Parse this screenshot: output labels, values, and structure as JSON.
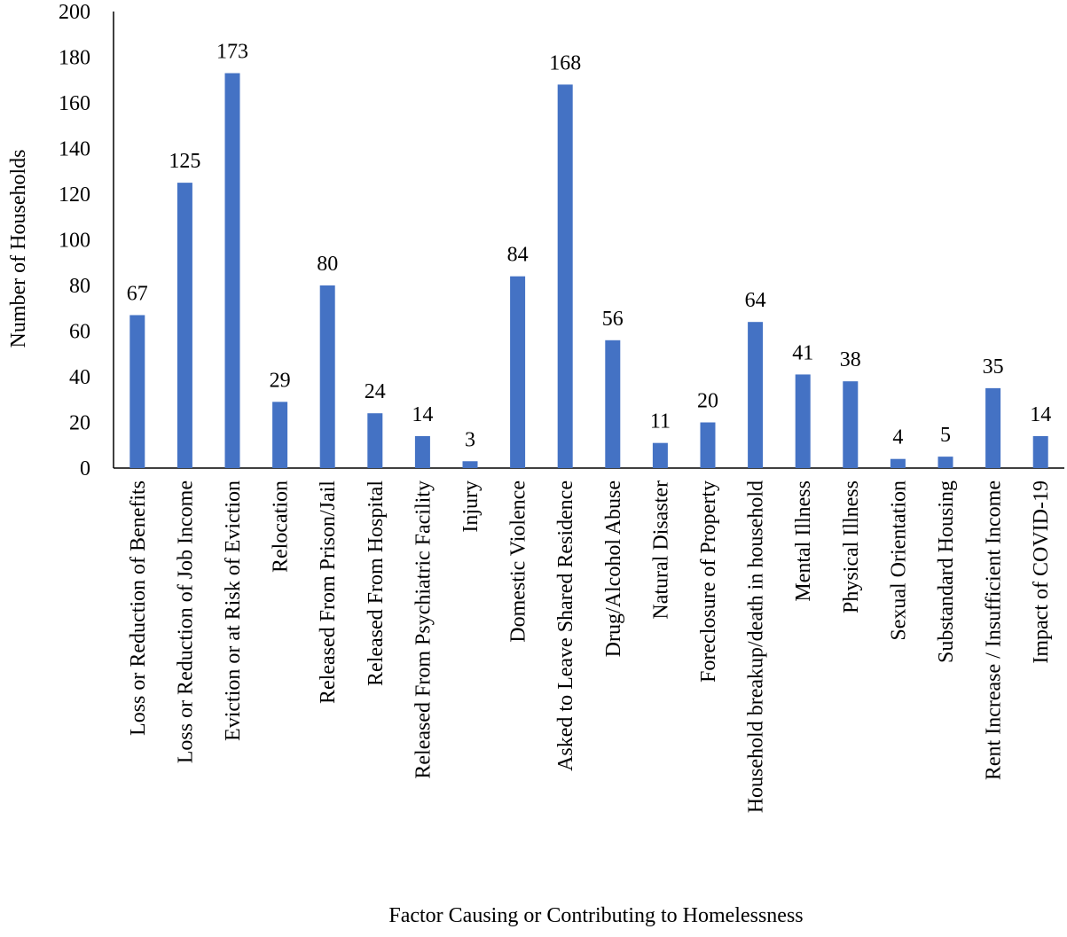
{
  "chart_data": {
    "type": "bar",
    "title": "",
    "xlabel": "Factor Causing or Contributing to Homelessness",
    "ylabel": "Number of Households",
    "ylim": [
      0,
      200
    ],
    "yticks": [
      0,
      20,
      40,
      60,
      80,
      100,
      120,
      140,
      160,
      180,
      200
    ],
    "grid": false,
    "legend": "none",
    "bar_color": "#4472C4",
    "categories": [
      "Loss or Reduction of Benefits",
      "Loss or Reduction of Job Income",
      "Eviction or at Risk of Eviction",
      "Relocation",
      "Released From Prison/Jail",
      "Released From Hospital",
      "Released From Psychiatric Facility",
      "Injury",
      "Domestic Violence",
      "Asked to Leave Shared Residence",
      "Drug/Alcohol Abuse",
      "Natural Disaster",
      "Foreclosure of Property",
      "Household breakup/death in household",
      "Mental Illness",
      "Physical Illness",
      "Sexual Orientation",
      "Substandard Housing",
      "Rent Increase / Insufficient Income",
      "Impact of COVID-19"
    ],
    "values": [
      67,
      125,
      173,
      29,
      80,
      24,
      14,
      3,
      84,
      168,
      56,
      11,
      20,
      64,
      41,
      38,
      4,
      5,
      35,
      14
    ],
    "data_labels": [
      "67",
      "125",
      "173",
      "29",
      "80",
      "24",
      "14",
      "3",
      "84",
      "168",
      "56",
      "11",
      "20",
      "64",
      "41",
      "38",
      "4",
      "5",
      "35",
      "14"
    ]
  }
}
